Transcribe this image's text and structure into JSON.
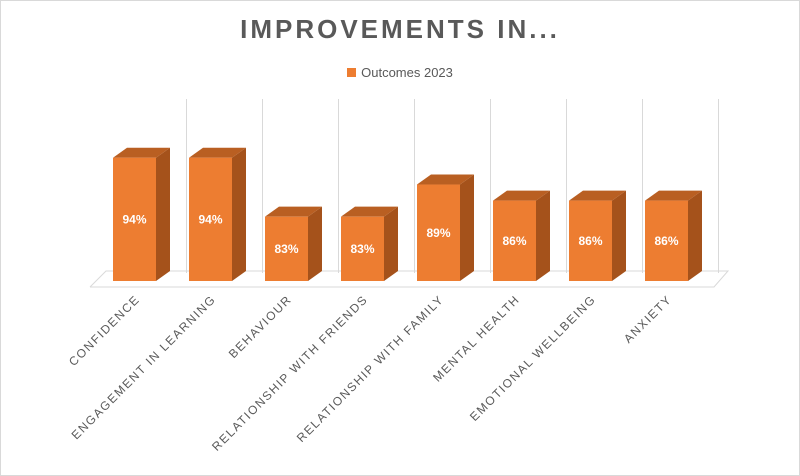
{
  "chart_data": {
    "type": "bar",
    "title": "IMPROVEMENTS IN...",
    "categories": [
      "CONFIDENCE",
      "ENGAGEMENT IN LEARNING",
      "BEHAVIOUR",
      "RELATIONSHIP WITH FRIENDS",
      "RELATIONSHIP WITH FAMILY",
      "MENTAL HEALTH",
      "EMOTIONAL WELLBEING",
      "ANXIETY"
    ],
    "series": [
      {
        "name": "Outcomes 2023",
        "values": [
          94,
          94,
          83,
          83,
          89,
          86,
          86,
          86
        ],
        "data_labels": [
          "94%",
          "94%",
          "83%",
          "83%",
          "89%",
          "86%",
          "86%",
          "86%"
        ],
        "color": "#ed7d31"
      }
    ],
    "ylim": [
      71,
      100
    ],
    "xlabel": "",
    "ylabel": "",
    "grid": true,
    "legend_position": "top",
    "style": "3d-column",
    "colors": {
      "front": "#ed7d31",
      "side": "#a5521b",
      "top": "#b95f22",
      "grid": "#d9d9d9",
      "text": "#595959"
    }
  }
}
